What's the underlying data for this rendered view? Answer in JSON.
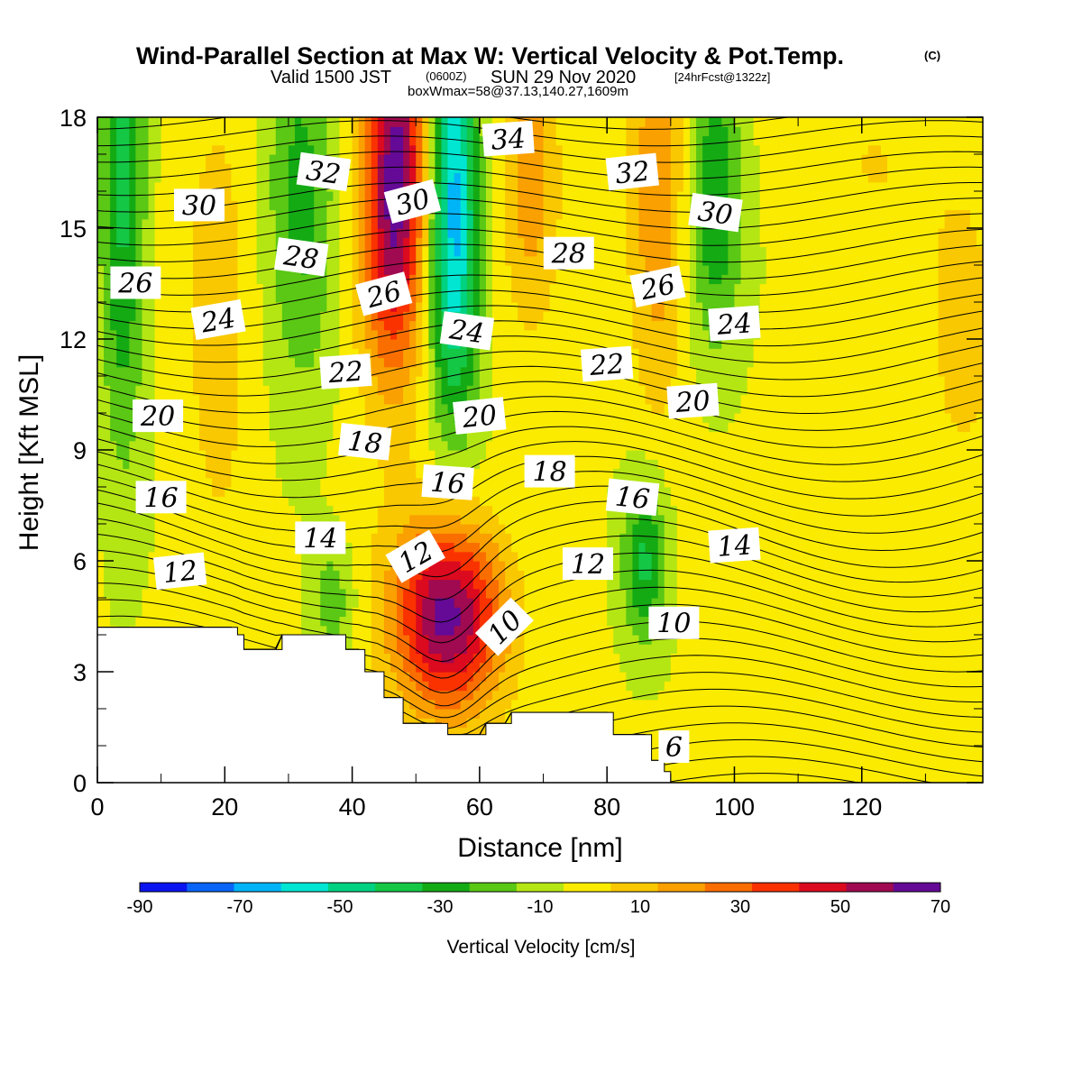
{
  "title": {
    "main": "Wind-Parallel Section at Max W: Vertical Velocity & Pot.Temp.",
    "copyright": "(C)",
    "valid_prefix": "Valid 1500 JST",
    "valid_z": "(0600Z)",
    "valid_date": "SUN 29 Nov 2020",
    "forecast": "[24hrFcst@1322z]",
    "boxwmax": "boxWmax=58@37.13,140.27,1609m"
  },
  "chart_data": {
    "type": "heatmap",
    "description_kind": "vertical cross-section filled contours with isentrope line contours",
    "xlabel": "Distance [nm]",
    "ylabel": "Height [Kft MSL]",
    "xlim": [
      0,
      139
    ],
    "ylim": [
      0,
      18
    ],
    "xticks": [
      "0",
      "20",
      "40",
      "60",
      "80",
      "100",
      "120"
    ],
    "xtick_values": [
      0,
      20,
      40,
      60,
      80,
      100,
      120
    ],
    "yticks": [
      "0",
      "3",
      "6",
      "9",
      "12",
      "15",
      "18"
    ],
    "ytick_values": [
      0,
      3,
      6,
      9,
      12,
      15,
      18
    ],
    "colorbar": {
      "title": "Vertical Velocity [cm/s]",
      "labels": [
        "-90",
        "-70",
        "-50",
        "-30",
        "-10",
        "10",
        "30",
        "50",
        "70"
      ],
      "levels": [
        -90,
        -80,
        -70,
        -60,
        -50,
        -40,
        -30,
        -20,
        -10,
        0,
        10,
        20,
        30,
        40,
        50,
        60,
        70
      ],
      "colors": [
        "#0a14f0",
        "#0a64f8",
        "#00b4f8",
        "#00e6d2",
        "#00d282",
        "#14c846",
        "#14aa14",
        "#5ac814",
        "#b4e614",
        "#faeb00",
        "#fac800",
        "#faa000",
        "#fa6e00",
        "#fa3200",
        "#dc0a1e",
        "#a00a50",
        "#640a96"
      ]
    },
    "terrain_kft": [
      [
        0,
        4.2
      ],
      [
        22,
        4.2
      ],
      [
        22,
        4.0
      ],
      [
        23,
        4.0
      ],
      [
        23,
        3.6
      ],
      [
        29,
        3.6
      ],
      [
        29,
        4.0
      ],
      [
        39,
        4.0
      ],
      [
        39,
        3.6
      ],
      [
        42,
        3.6
      ],
      [
        42,
        3.0
      ],
      [
        45,
        3.0
      ],
      [
        45,
        2.3
      ],
      [
        48,
        2.3
      ],
      [
        48,
        1.6
      ],
      [
        55,
        1.6
      ],
      [
        55,
        1.3
      ],
      [
        61,
        1.3
      ],
      [
        61,
        1.6
      ],
      [
        65,
        1.6
      ],
      [
        65,
        1.9
      ],
      [
        81,
        1.9
      ],
      [
        81,
        1.3
      ],
      [
        87,
        1.3
      ],
      [
        87,
        0.6
      ],
      [
        89,
        0.6
      ],
      [
        89,
        0.3
      ],
      [
        90,
        0.3
      ],
      [
        90,
        0
      ]
    ],
    "velocity_features": [
      {
        "x": 55,
        "z": 4.5,
        "sx": 6,
        "sz": 1.8,
        "w": 72
      },
      {
        "x": 47,
        "z": 17.5,
        "sx": 3,
        "sz": 3.5,
        "w": 50
      },
      {
        "x": 46,
        "z": 14.5,
        "sx": 4,
        "sz": 3,
        "w": 35
      },
      {
        "x": 56,
        "z": 17,
        "sx": 2.5,
        "sz": 3.5,
        "w": -50
      },
      {
        "x": 56,
        "z": 13,
        "sx": 3,
        "sz": 3,
        "w": -30
      },
      {
        "x": 86,
        "z": 6,
        "sx": 2.5,
        "sz": 1.6,
        "w": -35
      },
      {
        "x": 32,
        "z": 16,
        "sx": 4,
        "sz": 4,
        "w": -25
      },
      {
        "x": 4,
        "z": 16,
        "sx": 2.5,
        "sz": 5,
        "w": -35
      },
      {
        "x": 97,
        "z": 16,
        "sx": 3,
        "sz": 3,
        "w": -30
      },
      {
        "x": 37,
        "z": 5,
        "sx": 2.5,
        "sz": 1.2,
        "w": -18
      },
      {
        "x": 88,
        "z": 16,
        "sx": 3,
        "sz": 4,
        "w": 28
      },
      {
        "x": 68,
        "z": 17,
        "sx": 3,
        "sz": 3,
        "w": 25
      },
      {
        "x": 19,
        "z": 12,
        "sx": 4,
        "sz": 6,
        "w": 12
      },
      {
        "x": 136,
        "z": 12,
        "sx": 4,
        "sz": 3,
        "w": 12
      },
      {
        "x": 122,
        "z": 17,
        "sx": 8,
        "sz": 2,
        "w": 8
      }
    ],
    "isentrope_labels": [
      {
        "text": "30",
        "x": 16,
        "z": 15.6,
        "rot": 0
      },
      {
        "text": "32",
        "x": 35.5,
        "z": 16.5,
        "rot": 8
      },
      {
        "text": "34",
        "x": 64.5,
        "z": 17.4,
        "rot": -4
      },
      {
        "text": "30",
        "x": 49.5,
        "z": 15.7,
        "rot": -15
      },
      {
        "text": "32",
        "x": 84,
        "z": 16.5,
        "rot": -6
      },
      {
        "text": "30",
        "x": 97,
        "z": 15.4,
        "rot": 8
      },
      {
        "text": "26",
        "x": 6,
        "z": 13.5,
        "rot": 0
      },
      {
        "text": "28",
        "x": 32,
        "z": 14.2,
        "rot": 8
      },
      {
        "text": "28",
        "x": 74,
        "z": 14.3,
        "rot": 0
      },
      {
        "text": "26",
        "x": 45,
        "z": 13.2,
        "rot": -15
      },
      {
        "text": "26",
        "x": 88,
        "z": 13.4,
        "rot": -12
      },
      {
        "text": "24",
        "x": 19,
        "z": 12.5,
        "rot": -10
      },
      {
        "text": "24",
        "x": 58,
        "z": 12.2,
        "rot": 8
      },
      {
        "text": "24",
        "x": 100,
        "z": 12.4,
        "rot": -4
      },
      {
        "text": "22",
        "x": 39,
        "z": 11.1,
        "rot": -4
      },
      {
        "text": "22",
        "x": 80,
        "z": 11.3,
        "rot": -4
      },
      {
        "text": "20",
        "x": 9.5,
        "z": 9.9,
        "rot": 0
      },
      {
        "text": "20",
        "x": 60,
        "z": 9.9,
        "rot": -6
      },
      {
        "text": "20",
        "x": 93.5,
        "z": 10.3,
        "rot": -4
      },
      {
        "text": "18",
        "x": 42,
        "z": 9.2,
        "rot": 6
      },
      {
        "text": "18",
        "x": 71,
        "z": 8.4,
        "rot": 0
      },
      {
        "text": "16",
        "x": 10,
        "z": 7.7,
        "rot": 0
      },
      {
        "text": "16",
        "x": 55,
        "z": 8.1,
        "rot": 4
      },
      {
        "text": "16",
        "x": 84,
        "z": 7.7,
        "rot": 6
      },
      {
        "text": "14",
        "x": 35,
        "z": 6.6,
        "rot": 0
      },
      {
        "text": "14",
        "x": 100,
        "z": 6.4,
        "rot": -4
      },
      {
        "text": "12",
        "x": 13,
        "z": 5.7,
        "rot": -6
      },
      {
        "text": "12",
        "x": 50,
        "z": 6.1,
        "rot": -30
      },
      {
        "text": "12",
        "x": 77,
        "z": 5.9,
        "rot": 0
      },
      {
        "text": "10",
        "x": 64,
        "z": 4.2,
        "rot": -45
      },
      {
        "text": "10",
        "x": 90.5,
        "z": 4.3,
        "rot": 0
      },
      {
        "text": "6",
        "x": 90.5,
        "z": 0.95,
        "rot": 0
      }
    ]
  }
}
